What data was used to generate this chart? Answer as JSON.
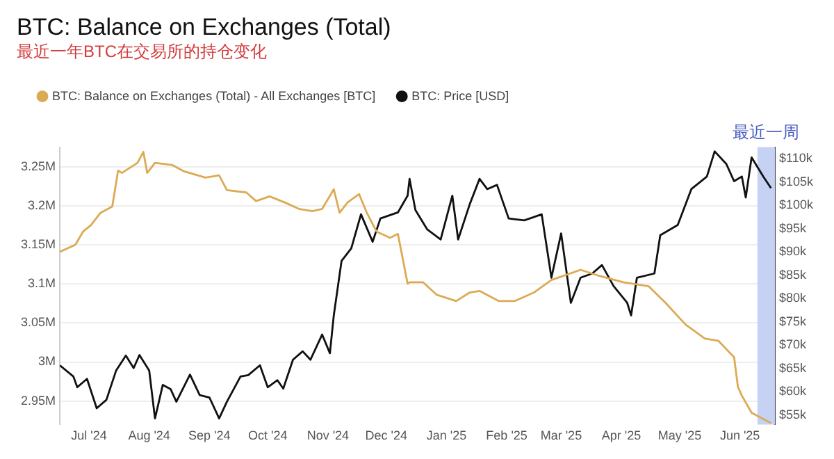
{
  "chart_data": {
    "type": "line",
    "title": "BTC: Balance on Exchanges (Total)",
    "subtitle": "最近一年BTC在交易所的持仓变化",
    "series": [
      {
        "name": "BTC: Balance on Exchanges (Total) - All Exchanges [BTC]",
        "color": "#dcaa55",
        "x": [
          "2024-06-16",
          "2024-06-24",
          "2024-06-28",
          "2024-07-02",
          "2024-07-07",
          "2024-07-13",
          "2024-07-16",
          "2024-07-18",
          "2024-07-26",
          "2024-07-29",
          "2024-07-31",
          "2024-08-04",
          "2024-08-13",
          "2024-08-19",
          "2024-08-30",
          "2024-09-06",
          "2024-09-10",
          "2024-09-20",
          "2024-09-25",
          "2024-10-02",
          "2024-10-10",
          "2024-10-17",
          "2024-10-24",
          "2024-10-29",
          "2024-11-04",
          "2024-11-07",
          "2024-11-11",
          "2024-11-17",
          "2024-11-21",
          "2024-11-26",
          "2024-12-03",
          "2024-12-07",
          "2024-12-12",
          "2024-12-13",
          "2024-12-20",
          "2024-12-27",
          "2025-01-06",
          "2025-01-13",
          "2025-01-18",
          "2025-01-28",
          "2025-02-05",
          "2025-02-15",
          "2025-02-24",
          "2025-03-11",
          "2025-03-21",
          "2025-04-02",
          "2025-04-15",
          "2025-04-24",
          "2025-05-04",
          "2025-05-14",
          "2025-05-21",
          "2025-05-29",
          "2025-05-31",
          "2025-06-02",
          "2025-06-07",
          "2025-06-13",
          "2025-06-17"
        ],
        "values": [
          3.141,
          3.15,
          3.167,
          3.175,
          3.191,
          3.199,
          3.245,
          3.242,
          3.255,
          3.269,
          3.242,
          3.255,
          3.252,
          3.244,
          3.236,
          3.239,
          3.22,
          3.217,
          3.206,
          3.212,
          3.204,
          3.196,
          3.193,
          3.196,
          3.221,
          3.191,
          3.204,
          3.215,
          3.191,
          3.167,
          3.159,
          3.164,
          3.1,
          3.102,
          3.102,
          3.086,
          3.078,
          3.089,
          3.091,
          3.078,
          3.078,
          3.089,
          3.105,
          3.118,
          3.11,
          3.102,
          3.097,
          3.075,
          3.048,
          3.03,
          3.027,
          3.006,
          2.968,
          2.957,
          2.935,
          2.927,
          2.922
        ]
      },
      {
        "name": "BTC: Price [USD]",
        "color": "#111111",
        "axis": "y2",
        "x": [
          "2024-06-16",
          "2024-06-23",
          "2024-06-25",
          "2024-06-30",
          "2024-07-05",
          "2024-07-10",
          "2024-07-15",
          "2024-07-20",
          "2024-07-24",
          "2024-07-27",
          "2024-08-01",
          "2024-08-04",
          "2024-08-08",
          "2024-08-12",
          "2024-08-15",
          "2024-08-22",
          "2024-08-27",
          "2024-09-01",
          "2024-09-06",
          "2024-09-10",
          "2024-09-17",
          "2024-09-21",
          "2024-09-27",
          "2024-10-01",
          "2024-10-06",
          "2024-10-09",
          "2024-10-14",
          "2024-10-19",
          "2024-10-23",
          "2024-10-29",
          "2024-11-02",
          "2024-11-04",
          "2024-11-08",
          "2024-11-13",
          "2024-11-18",
          "2024-11-24",
          "2024-11-28",
          "2024-12-07",
          "2024-12-12",
          "2024-12-13",
          "2024-12-16",
          "2024-12-22",
          "2024-12-29",
          "2025-01-04",
          "2025-01-07",
          "2025-01-13",
          "2025-01-18",
          "2025-01-22",
          "2025-01-27",
          "2025-02-02",
          "2025-02-10",
          "2025-02-19",
          "2025-02-24",
          "2025-03-01",
          "2025-03-06",
          "2025-03-11",
          "2025-03-17",
          "2025-03-22",
          "2025-03-28",
          "2025-04-04",
          "2025-04-06",
          "2025-04-09",
          "2025-04-18",
          "2025-04-21",
          "2025-04-30",
          "2025-05-07",
          "2025-05-15",
          "2025-05-19",
          "2025-05-25",
          "2025-05-29",
          "2025-06-02",
          "2025-06-04",
          "2025-06-07",
          "2025-06-13",
          "2025-06-17"
        ],
        "values": [
          65.7,
          63.3,
          61,
          62.8,
          56.5,
          58.3,
          64.6,
          67.8,
          65.1,
          67.9,
          64.6,
          54.3,
          61.5,
          60.6,
          57.9,
          63.7,
          59.3,
          58.8,
          54.3,
          57.9,
          63.3,
          63.6,
          65.7,
          61,
          62.5,
          60.7,
          66.9,
          68.7,
          66.9,
          72.3,
          68.3,
          76.4,
          88.1,
          90.8,
          98.1,
          92.2,
          97.2,
          98.5,
          102.1,
          105.7,
          99,
          94.9,
          92.7,
          102.1,
          92.7,
          100.3,
          105.7,
          103.5,
          104.4,
          97.2,
          96.8,
          98.1,
          84.5,
          94,
          79.1,
          84.5,
          85.4,
          87.2,
          82.7,
          79.1,
          76.4,
          84.5,
          85.4,
          93.6,
          95.8,
          103.5,
          106.2,
          111.6,
          108.9,
          105.2,
          106.2,
          101.7,
          110.3,
          106.2,
          103.7
        ]
      }
    ],
    "xlim": [
      "2024-06-16",
      "2025-06-19"
    ],
    "xticks": [
      {
        "value": "2024-07-01",
        "label": "Jul '24"
      },
      {
        "value": "2024-08-01",
        "label": "Aug '24"
      },
      {
        "value": "2024-09-01",
        "label": "Sep '24"
      },
      {
        "value": "2024-10-01",
        "label": "Oct '24"
      },
      {
        "value": "2024-11-01",
        "label": "Nov '24"
      },
      {
        "value": "2024-12-01",
        "label": "Dec '24"
      },
      {
        "value": "2025-01-01",
        "label": "Jan '25"
      },
      {
        "value": "2025-02-01",
        "label": "Feb '25"
      },
      {
        "value": "2025-03-01",
        "label": "Mar '25"
      },
      {
        "value": "2025-04-01",
        "label": "Apr '25"
      },
      {
        "value": "2025-05-01",
        "label": "May '25"
      },
      {
        "value": "2025-06-01",
        "label": "Jun '25"
      }
    ],
    "ylim": [
      2.92,
      3.275
    ],
    "yticks": [
      {
        "value": 2.95,
        "label": "2.95M"
      },
      {
        "value": 3,
        "label": "3M"
      },
      {
        "value": 3.05,
        "label": "3.05M"
      },
      {
        "value": 3.1,
        "label": "3.1M"
      },
      {
        "value": 3.15,
        "label": "3.15M"
      },
      {
        "value": 3.2,
        "label": "3.2M"
      },
      {
        "value": 3.25,
        "label": "3.25M"
      }
    ],
    "y2lim": [
      53,
      112.5
    ],
    "y2ticks": [
      {
        "value": 55,
        "label": "$55k"
      },
      {
        "value": 60,
        "label": "$60k"
      },
      {
        "value": 65,
        "label": "$65k"
      },
      {
        "value": 70,
        "label": "$70k"
      },
      {
        "value": 75,
        "label": "$75k"
      },
      {
        "value": 80,
        "label": "$80k"
      },
      {
        "value": 85,
        "label": "$85k"
      },
      {
        "value": 90,
        "label": "$90k"
      },
      {
        "value": 95,
        "label": "$95k"
      },
      {
        "value": 100,
        "label": "$100k"
      },
      {
        "value": 105,
        "label": "$105k"
      },
      {
        "value": 110,
        "label": "$110k"
      }
    ],
    "bands": [
      {
        "axis": "x",
        "from": "2025-06-10",
        "to": "2025-06-19",
        "label": "最近一周",
        "color": "#c6d2f4"
      }
    ],
    "grid": "y",
    "legend": "top left",
    "marker": "none",
    "line_style": "solid"
  }
}
